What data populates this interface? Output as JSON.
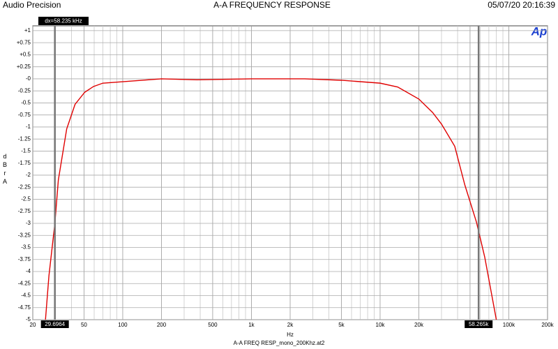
{
  "chart_data": {
    "type": "line",
    "header_left": "Audio Precision",
    "title": "A-A FREQUENCY RESPONSE",
    "header_right": "05/07/20 20:16:39",
    "xlabel": "Hz",
    "ylabel": "dBr A",
    "footer": "A-A FREQ RESP_mono_200Khz.at2",
    "logo": "Ap",
    "annotation": "dx=58.235 kHz",
    "log_x": true,
    "grid": true,
    "xlim": [
      20,
      200000
    ],
    "ylim": [
      -5,
      1.1
    ],
    "xticks": [
      20,
      50,
      100,
      200,
      500,
      {
        "value": 1000,
        "label": "1k"
      },
      {
        "value": 2000,
        "label": "2k"
      },
      {
        "value": 5000,
        "label": "5k"
      },
      {
        "value": 10000,
        "label": "10k"
      },
      {
        "value": 20000,
        "label": "20k"
      },
      {
        "value": 50000,
        "label": "50k"
      },
      {
        "value": 100000,
        "label": "100k"
      },
      {
        "value": 200000,
        "label": "200k"
      }
    ],
    "xminor": [
      30,
      40,
      60,
      70,
      80,
      90,
      300,
      400,
      600,
      700,
      800,
      900,
      3000,
      4000,
      6000,
      7000,
      8000,
      9000,
      30000,
      40000,
      60000,
      70000,
      80000,
      90000
    ],
    "yticks": [
      {
        "value": 1,
        "label": "+1"
      },
      {
        "value": 0.75,
        "label": "+0.75"
      },
      {
        "value": 0.5,
        "label": "+0.5"
      },
      {
        "value": 0.25,
        "label": "+0.25"
      },
      {
        "value": 0,
        "label": "-0"
      },
      -0.25,
      -0.5,
      -0.75,
      -1,
      -1.25,
      -1.5,
      -1.75,
      -2,
      -2.25,
      -2.5,
      -2.75,
      -3,
      -3.25,
      -3.5,
      -3.75,
      -4,
      -4.25,
      -4.5,
      -4.75,
      -5
    ],
    "cursors": [
      {
        "value": 29.6964,
        "label": "29.6964"
      },
      {
        "value": 58265,
        "label": "58.265k"
      }
    ],
    "series": [
      {
        "name": "A-A FREQ RESP",
        "color": "#e00000",
        "x": [
          25.1,
          26.7,
          29.7,
          31.6,
          36.7,
          42.6,
          50.6,
          59.2,
          70,
          100,
          200,
          378,
          1000,
          2600,
          5000,
          10000,
          13700,
          20000,
          25600,
          30000,
          38000,
          45500,
          56000,
          65000,
          80000
        ],
        "values": [
          -5,
          -4.09,
          -3.0,
          -2.1,
          -1.04,
          -0.53,
          -0.28,
          -0.16,
          -0.09,
          -0.06,
          0,
          -0.02,
          0,
          0,
          -0.03,
          -0.09,
          -0.17,
          -0.42,
          -0.7,
          -0.94,
          -1.4,
          -2.2,
          -2.97,
          -3.7,
          -5
        ]
      }
    ]
  }
}
